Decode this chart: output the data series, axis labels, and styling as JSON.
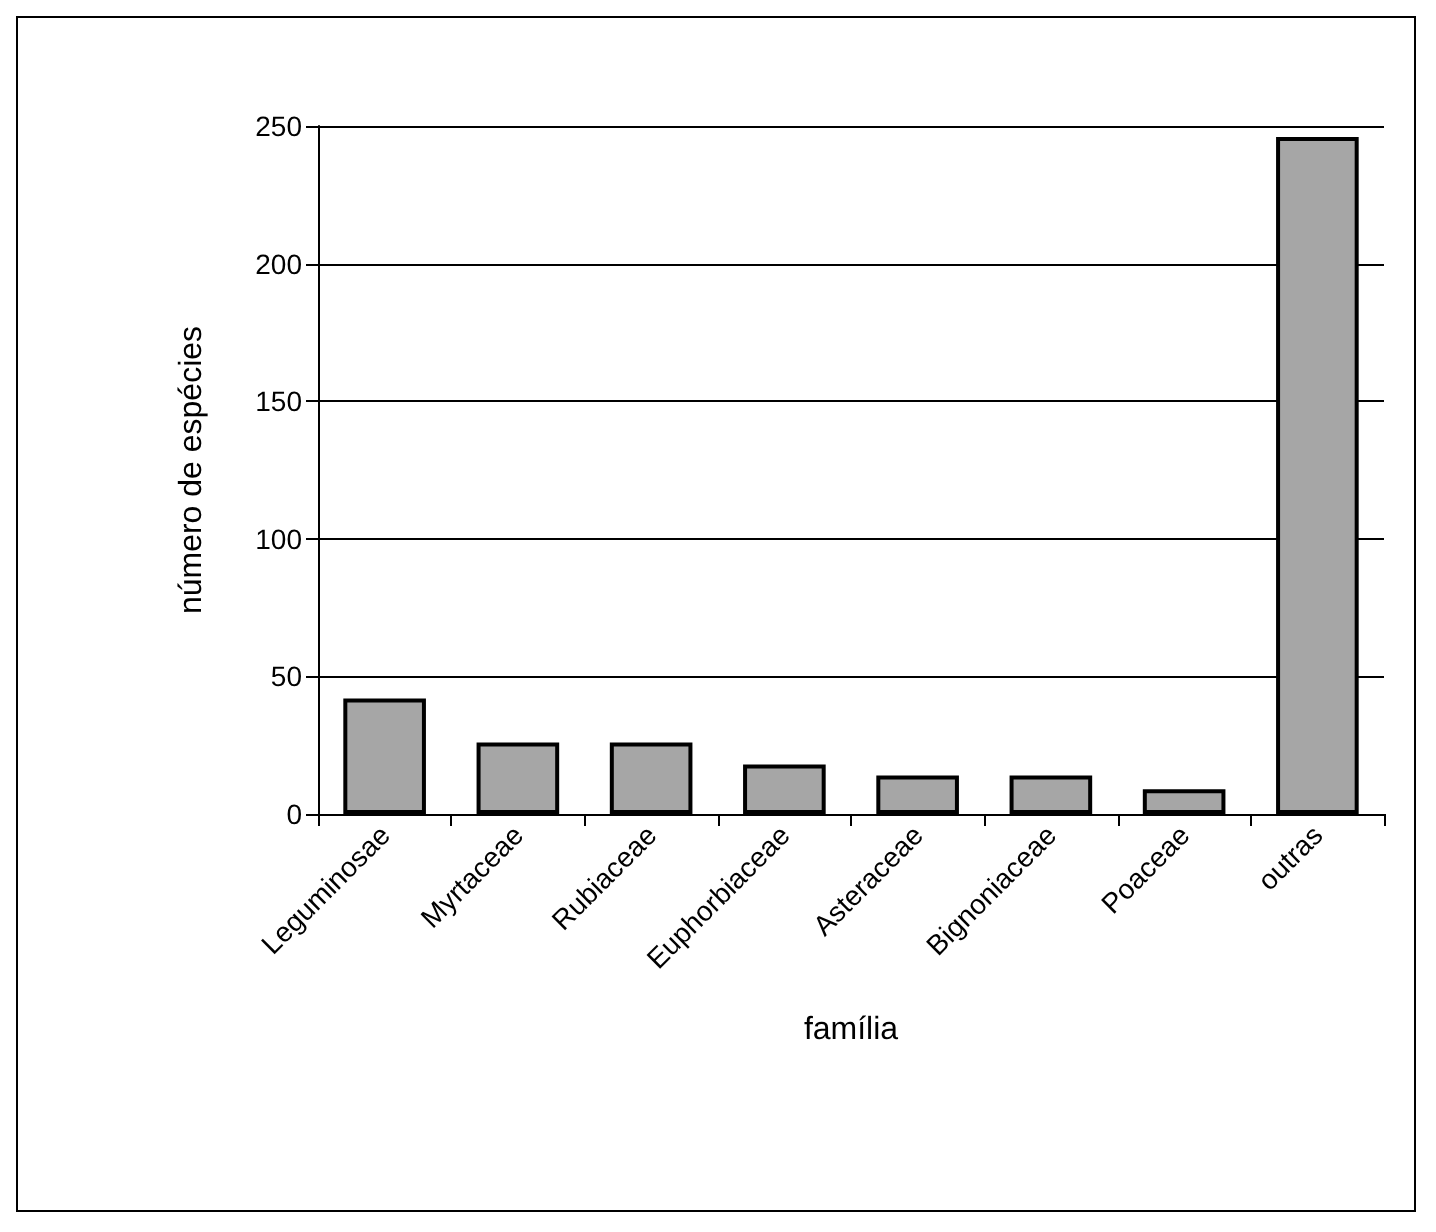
{
  "chart_data": {
    "type": "bar",
    "xlabel": "família",
    "ylabel": "número de espécies",
    "categories": [
      "Leguminosae",
      "Myrtaceae",
      "Rubiaceae",
      "Euphorbiaceae",
      "Asteraceae",
      "Bignoniaceae",
      "Poaceae",
      "outras"
    ],
    "values": [
      42,
      26,
      26,
      18,
      14,
      14,
      9,
      246
    ],
    "color": "#a6a6a6",
    "ylim": [
      0,
      250
    ],
    "yticks": [
      0,
      50,
      100,
      150,
      200,
      250
    ],
    "grid": "y"
  }
}
